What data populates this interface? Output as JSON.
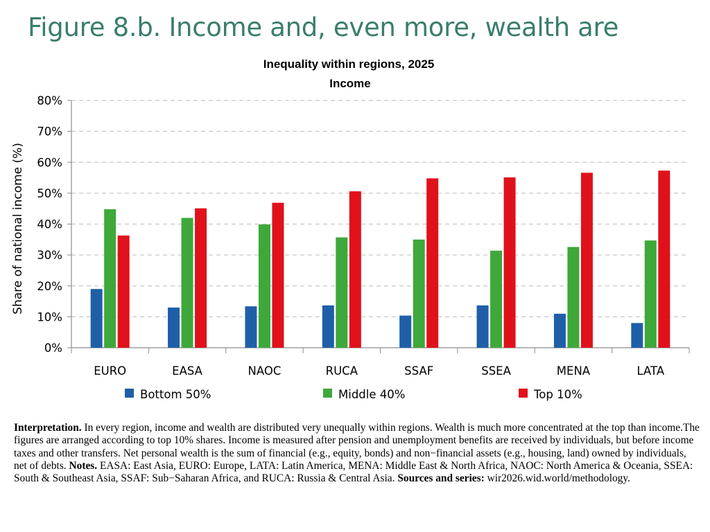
{
  "page": {
    "figure_title": "Figure 8.b. Income and, even more, wealth are"
  },
  "chart_data": {
    "type": "bar",
    "title": "Inequality within regions, 2025",
    "subtitle": "Income",
    "ylabel": "Share of national income (%)",
    "xlabel": "",
    "ylim": [
      0,
      80
    ],
    "yticks": [
      "0%",
      "10%",
      "20%",
      "30%",
      "40%",
      "50%",
      "60%",
      "70%",
      "80%"
    ],
    "grid": true,
    "legend_position": "bottom",
    "categories": [
      "EURO",
      "EASA",
      "NAOC",
      "RUCA",
      "SSAF",
      "SSEA",
      "MENA",
      "LATA"
    ],
    "series": [
      {
        "name": "Bottom 50%",
        "color": "#1f5fa8",
        "values": [
          19,
          13,
          13.4,
          13.7,
          10.4,
          13.7,
          11,
          8
        ]
      },
      {
        "name": "Middle 40%",
        "color": "#3ea83a",
        "values": [
          44.8,
          42,
          39.9,
          35.7,
          35,
          31.4,
          32.6,
          34.7
        ]
      },
      {
        "name": "Top 10%",
        "color": "#e0111b",
        "values": [
          36.3,
          45.1,
          46.9,
          50.6,
          54.8,
          55.1,
          56.6,
          57.3
        ]
      }
    ]
  },
  "notes": {
    "interpretation_label": "Interpretation.",
    "interpretation_text": " In every region, income and wealth are distributed very unequally within regions. Wealth is much more concentrated at the top than income.The figures are arranged according to top 10% shares. Income is measured after pension and unemployment benefits are received by individuals, but before income taxes and other transfers. Net personal wealth is the sum of financial (e.g., equity, bonds) and non−financial assets (e.g., housing, land) owned by individuals, net of debts. ",
    "notes_label": "Notes.",
    "notes_text": " EASA: East Asia, EURO: Europe, LATA: Latin America, MENA: Middle East & North Africa, NAOC: North America & Oceania, SSEA: South & Southeast Asia, SSAF: Sub−Saharan Africa, and RUCA: Russia & Central Asia. ",
    "sources_label": "Sources and series:",
    "sources_text": " wir2026.wid.world/methodology."
  }
}
